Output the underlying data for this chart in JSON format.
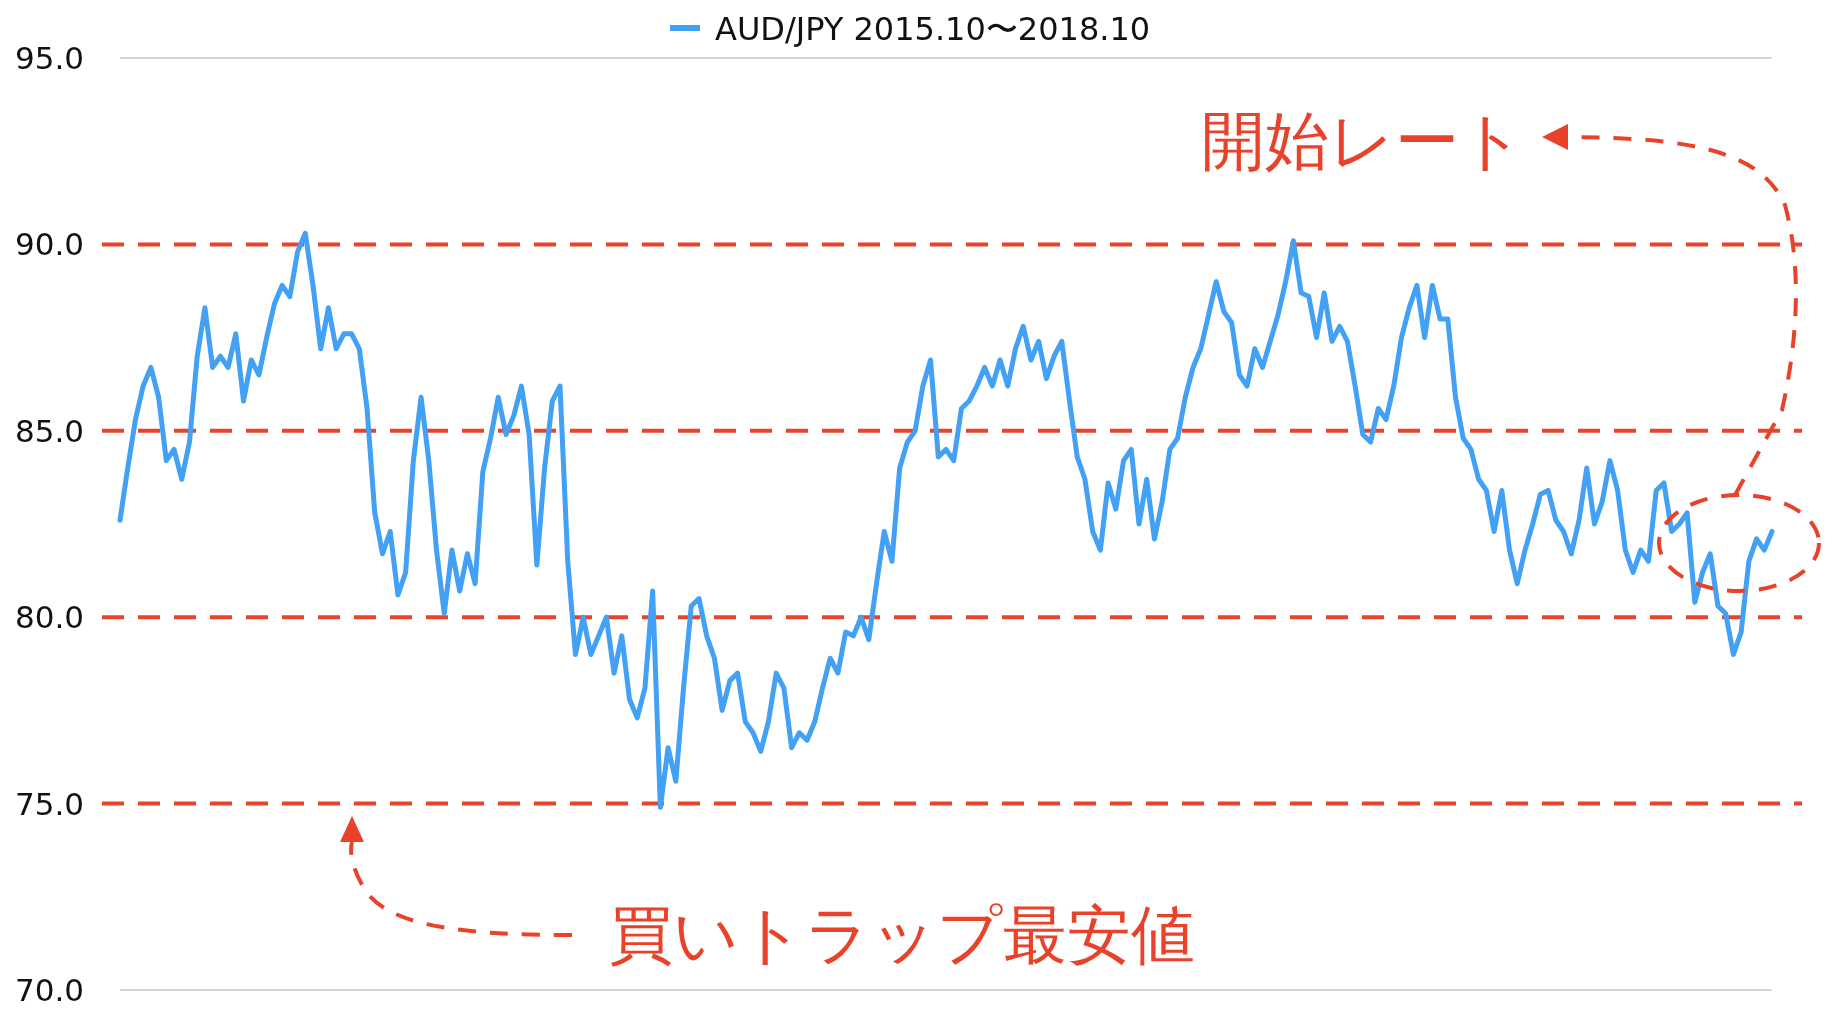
{
  "chart_data": {
    "type": "line",
    "categories": [
      null,
      null,
      null,
      null,
      null,
      null,
      null,
      null,
      null,
      null,
      null,
      null,
      null,
      null,
      null,
      null,
      null,
      null,
      null,
      null,
      null,
      null,
      null,
      null,
      null,
      null,
      null,
      null,
      null,
      null,
      null,
      null,
      null,
      null,
      null,
      null,
      null,
      null,
      null,
      null,
      null,
      null,
      null,
      null,
      null,
      null,
      null,
      null,
      null,
      null,
      null,
      null,
      null,
      null,
      null,
      null,
      null,
      null,
      null,
      null,
      null,
      null,
      null,
      null,
      null,
      null,
      null,
      null,
      null,
      null,
      null,
      null,
      null,
      null,
      null,
      null,
      null,
      null,
      null,
      null,
      null,
      null,
      null,
      null,
      null,
      null,
      null,
      null,
      null,
      null,
      null,
      null,
      null,
      null,
      null,
      null,
      null,
      null,
      null,
      null,
      null,
      null,
      null,
      null,
      null,
      null,
      null,
      null,
      null,
      null,
      null,
      null,
      null,
      null,
      null,
      null,
      null,
      null,
      null,
      null,
      null,
      null,
      null,
      null,
      null,
      null,
      null,
      null,
      null,
      null,
      null,
      null,
      null,
      null,
      null,
      null,
      null,
      null,
      null,
      null,
      null,
      null,
      null,
      null,
      null,
      null,
      null,
      null,
      null,
      null,
      null,
      null,
      null,
      null,
      null,
      null,
      null,
      null,
      null,
      null,
      null,
      null,
      null,
      null,
      null,
      null,
      null,
      null,
      null,
      null,
      null,
      null,
      null,
      null,
      null,
      null,
      null,
      null,
      null,
      null,
      null,
      null,
      null,
      null,
      null,
      null,
      null,
      null,
      null,
      null,
      null,
      null,
      null,
      null,
      null,
      null,
      null,
      null,
      null,
      null,
      null,
      null,
      null,
      null,
      null,
      null,
      null,
      null,
      null,
      null,
      null,
      null,
      null,
      null,
      null
    ],
    "series": [
      {
        "name": "AUD/JPY 2015.10〜2018.10",
        "color": "#42a0f5",
        "values": [
          82.6,
          84.0,
          85.3,
          86.2,
          86.7,
          85.9,
          84.2,
          84.5,
          83.7,
          84.7,
          87.0,
          88.3,
          86.7,
          87.0,
          86.7,
          87.6,
          85.8,
          86.9,
          86.5,
          87.5,
          88.4,
          88.9,
          88.6,
          89.8,
          90.3,
          88.9,
          87.2,
          88.3,
          87.2,
          87.6,
          87.6,
          87.2,
          85.6,
          82.8,
          81.7,
          82.3,
          80.6,
          81.2,
          84.2,
          85.9,
          84.2,
          81.8,
          80.1,
          81.8,
          80.7,
          81.7,
          80.9,
          83.9,
          84.8,
          85.9,
          84.9,
          85.4,
          86.2,
          84.9,
          81.4,
          84.0,
          85.8,
          86.2,
          81.5,
          79.0,
          80.0,
          79.0,
          79.5,
          80.0,
          78.5,
          79.5,
          77.8,
          77.3,
          78.1,
          80.7,
          74.9,
          76.5,
          75.6,
          78.1,
          80.3,
          80.5,
          79.5,
          78.9,
          77.5,
          78.3,
          78.5,
          77.2,
          76.9,
          76.4,
          77.2,
          78.5,
          78.1,
          76.5,
          76.9,
          76.7,
          77.2,
          78.1,
          78.9,
          78.5,
          79.6,
          79.5,
          80.0,
          79.4,
          80.9,
          82.3,
          81.5,
          84.0,
          84.7,
          85.0,
          86.2,
          86.9,
          84.3,
          84.5,
          84.2,
          85.6,
          85.8,
          86.2,
          86.7,
          86.2,
          86.9,
          86.2,
          87.2,
          87.8,
          86.9,
          87.4,
          86.4,
          87.0,
          87.4,
          85.8,
          84.3,
          83.7,
          82.3,
          81.8,
          83.6,
          82.9,
          84.2,
          84.5,
          82.5,
          83.7,
          82.1,
          83.1,
          84.5,
          84.8,
          85.9,
          86.7,
          87.2,
          88.1,
          89.0,
          88.2,
          87.9,
          86.5,
          86.2,
          87.2,
          86.7,
          87.4,
          88.1,
          89.0,
          90.1,
          88.7,
          88.6,
          87.5,
          88.7,
          87.4,
          87.8,
          87.4,
          86.2,
          84.9,
          84.7,
          85.6,
          85.3,
          86.2,
          87.5,
          88.3,
          88.9,
          87.5,
          88.9,
          88.0,
          88.0,
          85.9,
          84.8,
          84.5,
          83.7,
          83.4,
          82.3,
          83.4,
          81.8,
          80.9,
          81.8,
          82.5,
          83.3,
          83.4,
          82.6,
          82.3,
          81.7,
          82.6,
          84.0,
          82.5,
          83.1,
          84.2,
          83.4,
          81.8,
          81.2,
          81.8,
          81.5,
          83.4,
          83.6,
          82.3,
          82.5,
          82.8,
          80.4,
          81.2,
          81.7,
          80.3,
          80.1,
          79.0,
          79.6,
          81.5,
          82.1,
          81.8,
          82.3
        ]
      }
    ],
    "ylim": [
      70,
      95
    ],
    "yticks": [
      {
        "value": 70,
        "label": "70.0"
      },
      {
        "value": 75,
        "label": "75.0"
      },
      {
        "value": 80,
        "label": "80.0"
      },
      {
        "value": 85,
        "label": "85.0"
      },
      {
        "value": 90,
        "label": "90.0"
      },
      {
        "value": 95,
        "label": "95.0"
      }
    ],
    "legend": "top",
    "ref_lines": [
      {
        "axis": "y",
        "value": 70,
        "color": "#c8c8c8",
        "line_style": "solid"
      },
      {
        "axis": "y",
        "value": 95,
        "color": "#c8c8c8",
        "line_style": "solid"
      },
      {
        "axis": "y",
        "value": 75,
        "color": "#e8432a",
        "line_style": "dashed"
      },
      {
        "axis": "y",
        "value": 80,
        "color": "#e8432a",
        "line_style": "dashed"
      },
      {
        "axis": "y",
        "value": 85,
        "color": "#e8432a",
        "line_style": "dashed"
      },
      {
        "axis": "y",
        "value": 90,
        "color": "#e8432a",
        "line_style": "dashed"
      }
    ],
    "annotations": [
      "開始レート",
      "買いトラップ最安値"
    ]
  }
}
